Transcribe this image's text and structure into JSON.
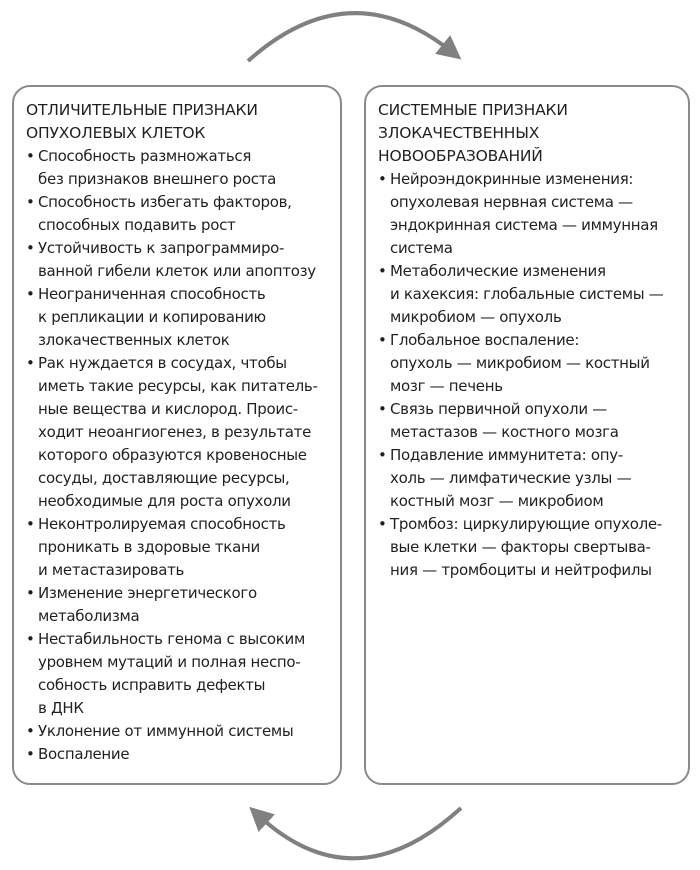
{
  "left": {
    "title": "ОТЛИЧИТЕЛЬНЫЕ ПРИЗНАКИ\nОПУХОЛЕВЫХ КЛЕТОК",
    "items": [
      "Способность размножаться\nбез признаков внешнего роста",
      "Способность избегать факторов,\nспособных подавить рост",
      "Устойчивость к запрограммиро-\nванной гибели клеток или апоптозу",
      "Неограниченная способность\nк репликации и копированию\nзлокачественных клеток",
      "Рак нуждается в сосудах, чтобы\nиметь такие ресурсы, как питатель-\nные вещества и кислород. Проис-\nходит неоангиогенез, в результате\nкоторого образуются кровеносные\nсосуды, доставляющие ресурсы,\nнеобходимые для роста опухоли",
      "Неконтролируемая способность\nпроникать в здоровые ткани\nи метастазировать",
      "Изменение энергетического\nметаболизма",
      "Нестабильность генома с высоким\nуровнем мутаций и полная неспо-\nсобность исправить дефекты\nв ДНК",
      "Уклонение от иммунной системы",
      "Воспаление"
    ]
  },
  "right": {
    "title": "СИСТЕМНЫЕ ПРИЗНАКИ\nЗЛОКАЧЕСТВЕННЫХ\nНОВООБРАЗОВАНИЙ",
    "items": [
      "Нейроэндокринные изменения:\nопухолевая нервная система —\nэндокринная система — иммунная\nсистема",
      "Метаболические изменения\nи кахексия: глобальные системы —\nмикробиом — опухоль",
      "Глобальное воспаление:\nопухоль — микробиом — костный\nмозг — печень",
      "Связь первичной опухоли —\nметастазов — костного мозга",
      "Подавление иммунитета: опу-\nхоль — лимфатические узлы —\nкостный мозг — микробиом",
      "Тромбоз: циркулирующие опухоле-\nвые клетки — факторы свертыва-\nния — тромбоциты и нейтрофилы"
    ]
  },
  "bullet": "•",
  "colors": {
    "border": "#8a8a8a",
    "arrow": "#808080",
    "text": "#231f20"
  }
}
